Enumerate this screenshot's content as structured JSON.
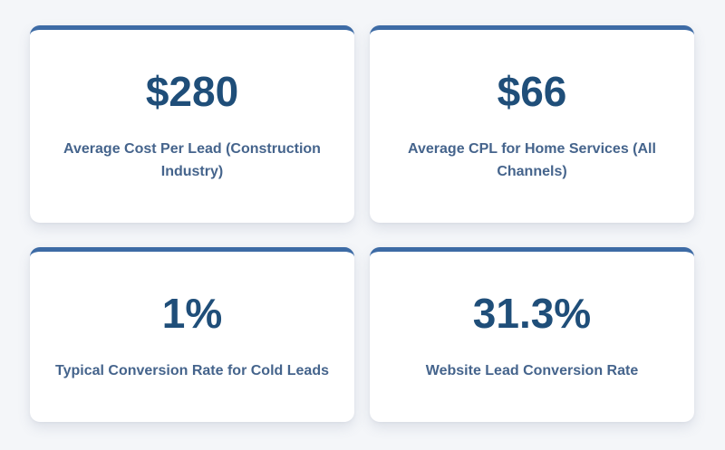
{
  "theme": {
    "accent_color": "#3d6ba5",
    "value_color": "#1f4e79",
    "label_color": "#45648c",
    "card_background": "#ffffff",
    "page_background": "#f4f6f9"
  },
  "cards": [
    {
      "value": "$280",
      "label": "Average Cost Per Lead (Construction Industry)"
    },
    {
      "value": "$66",
      "label": "Average CPL for Home Services (All Channels)"
    },
    {
      "value": "1%",
      "label": "Typical Conversion Rate for Cold Leads"
    },
    {
      "value": "31.3%",
      "label": "Website Lead Conversion Rate"
    }
  ]
}
